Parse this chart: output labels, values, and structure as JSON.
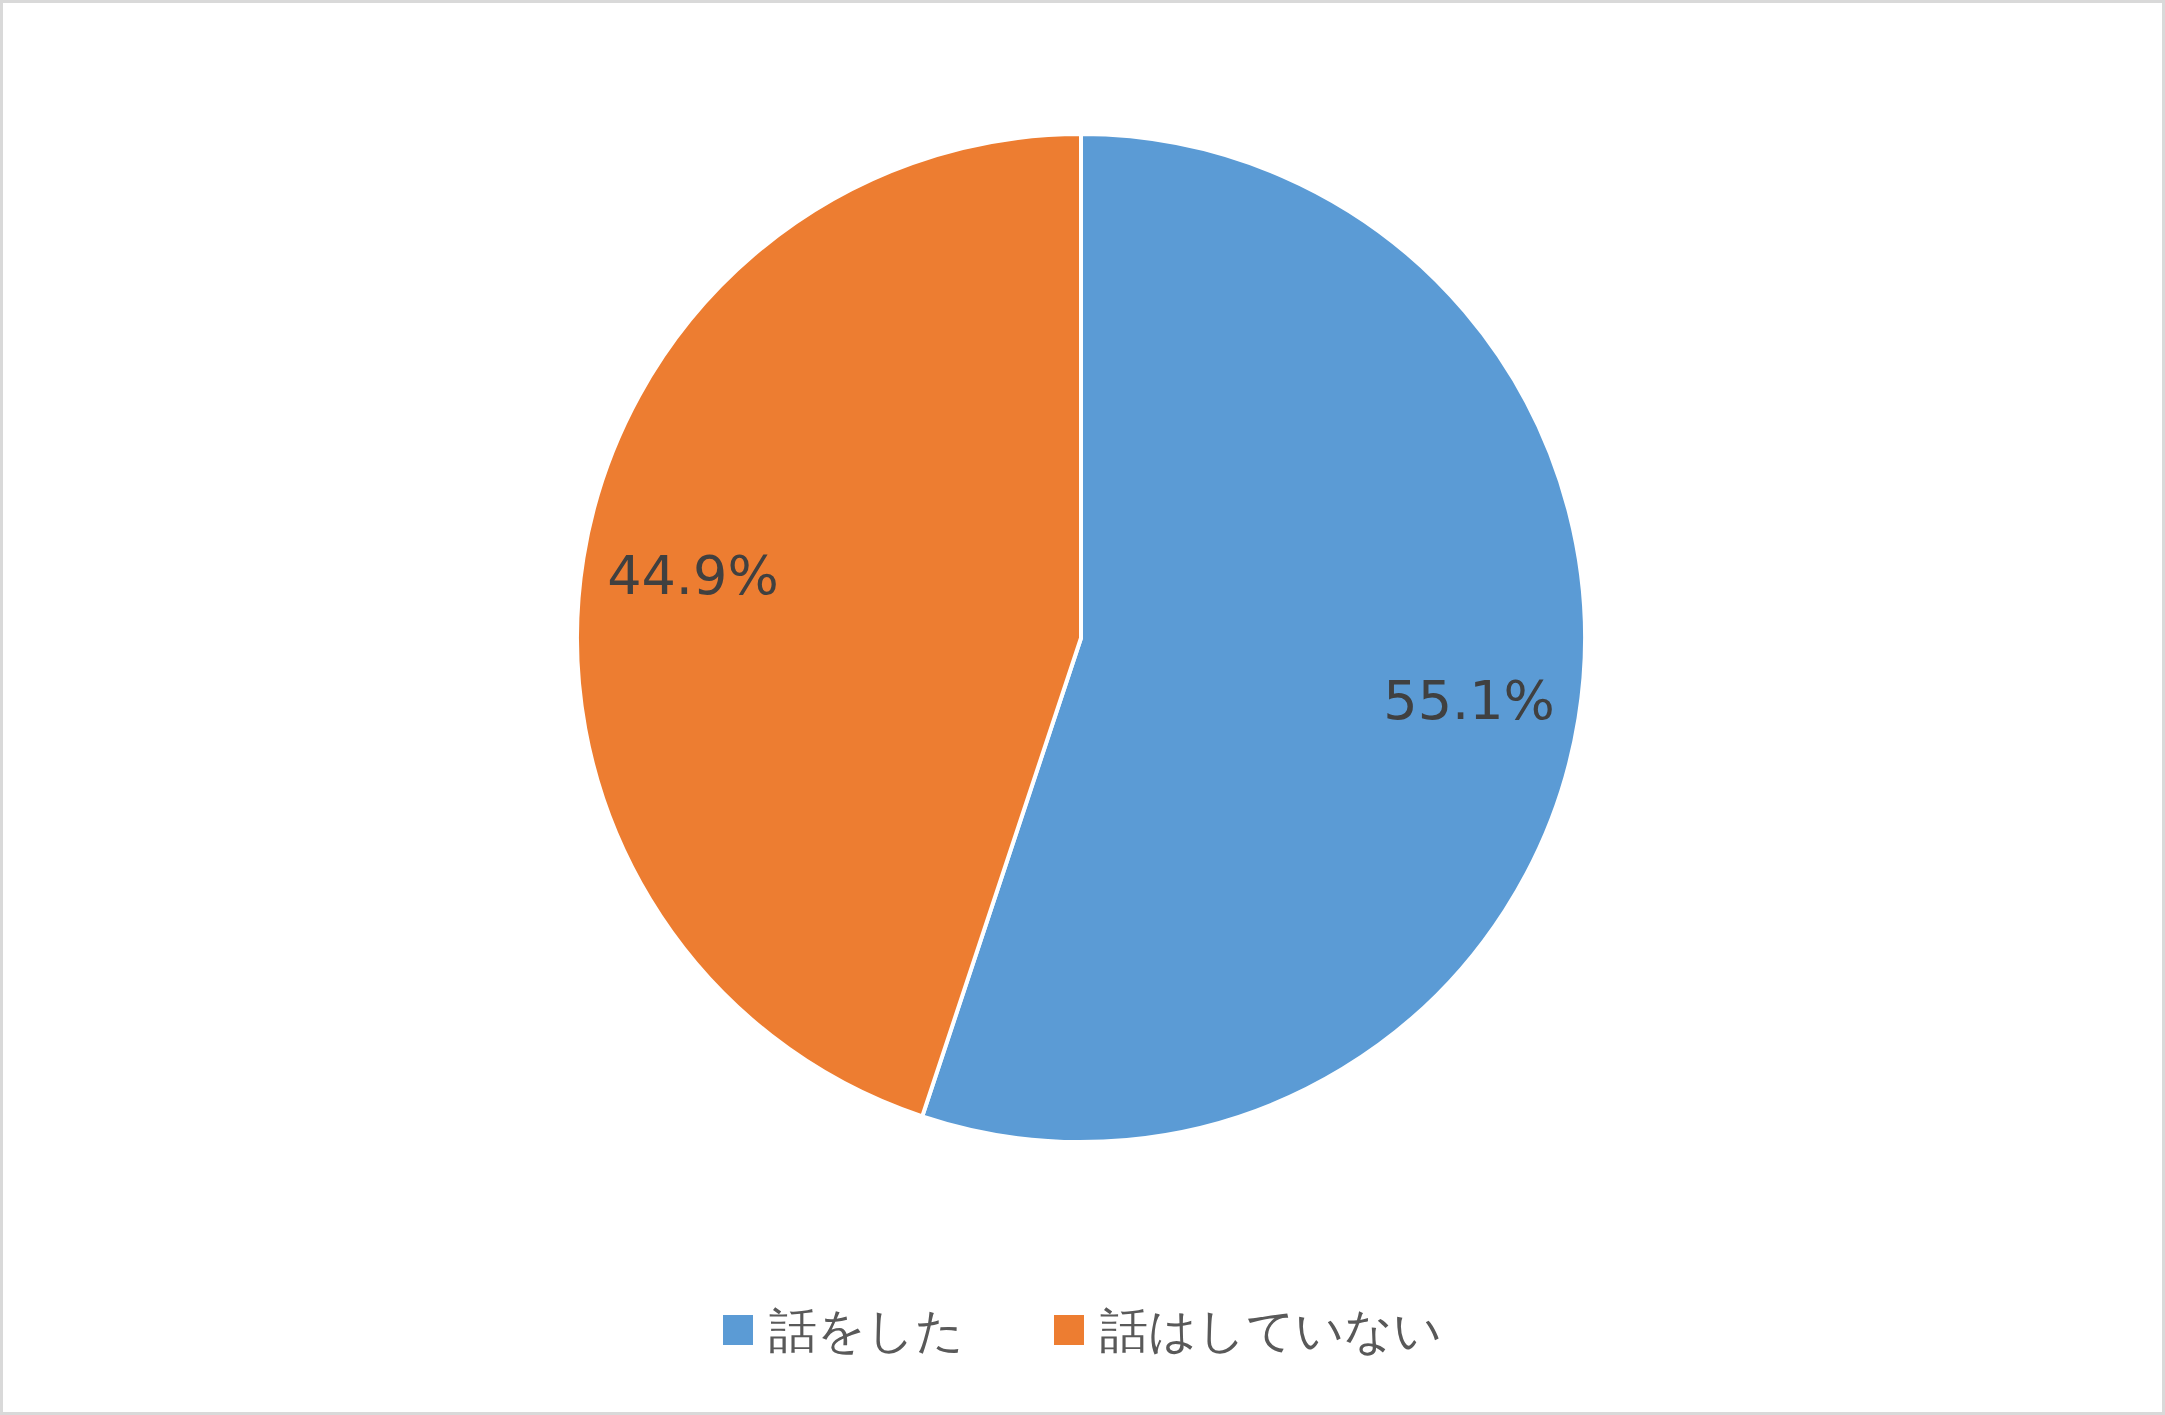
{
  "chart_data": {
    "type": "pie",
    "categories": [
      "話をした",
      "話はしていない"
    ],
    "values": [
      55.1,
      44.9
    ],
    "colors": [
      "#5b9bd5",
      "#ed7d31"
    ],
    "value_labels": [
      "55.1%",
      "44.9%"
    ],
    "legend": "bottom"
  }
}
